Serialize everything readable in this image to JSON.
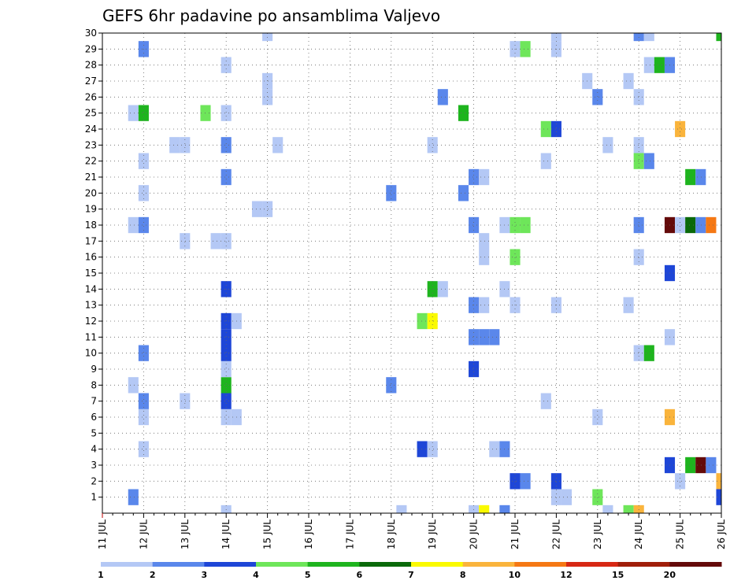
{
  "chart_data": {
    "type": "heatmap",
    "title": "GEFS 6hr padavine po ansamblima Valjevo",
    "x_tick_labels": [
      "11 JUL",
      "12 JUL",
      "13 JUL",
      "14 JUL",
      "15 JUL",
      "16 JUL",
      "17 JUL",
      "18 JUL",
      "19 JUL",
      "20 JUL",
      "21 JUL",
      "22 JUL",
      "23 JUL",
      "24 JUL",
      "25 JUL",
      "26 JUL"
    ],
    "y_tick_labels": [
      "1",
      "2",
      "3",
      "4",
      "5",
      "6",
      "7",
      "8",
      "9",
      "10",
      "11",
      "12",
      "13",
      "14",
      "15",
      "16",
      "17",
      "18",
      "19",
      "20",
      "21",
      "22",
      "23",
      "24",
      "25",
      "26",
      "27",
      "28",
      "29",
      "30"
    ],
    "xlim": [
      11.0,
      26.0
    ],
    "ylim": [
      0,
      30
    ],
    "time_step_hours": 6,
    "grid": "dotted",
    "colorbar": {
      "labels": [
        "1",
        "2",
        "3",
        "4",
        "5",
        "6",
        "7",
        "8",
        "10",
        "12",
        "15",
        "20"
      ],
      "colors": [
        "#b4c8f5",
        "#5a87eb",
        "#1e46d7",
        "#6ee65a",
        "#1eb41e",
        "#0a690a",
        "#fafa00",
        "#fab43c",
        "#f57814",
        "#d72814",
        "#a01e0a",
        "#640a0a"
      ]
    },
    "cells": [
      {
        "t": 11.75,
        "m": 1,
        "c": 1
      },
      {
        "t": 11.75,
        "m": 8,
        "c": 0
      },
      {
        "t": 11.75,
        "m": 18,
        "c": 0
      },
      {
        "t": 11.75,
        "m": 25,
        "c": 0
      },
      {
        "t": 12.0,
        "m": 4,
        "c": 0
      },
      {
        "t": 12.0,
        "m": 6,
        "c": 0
      },
      {
        "t": 12.0,
        "m": 7,
        "c": 1
      },
      {
        "t": 12.0,
        "m": 10,
        "c": 1
      },
      {
        "t": 12.0,
        "m": 18,
        "c": 1
      },
      {
        "t": 12.0,
        "m": 20,
        "c": 0
      },
      {
        "t": 12.0,
        "m": 22,
        "c": 0
      },
      {
        "t": 12.0,
        "m": 25,
        "c": 4
      },
      {
        "t": 12.0,
        "m": 29,
        "c": 1
      },
      {
        "t": 12.75,
        "m": 23,
        "c": 0
      },
      {
        "t": 13.0,
        "m": 23,
        "c": 0
      },
      {
        "t": 13.0,
        "m": 17,
        "c": 0
      },
      {
        "t": 13.0,
        "m": 7,
        "c": 0
      },
      {
        "t": 13.5,
        "m": 25,
        "c": 3
      },
      {
        "t": 13.75,
        "m": 17,
        "c": 0
      },
      {
        "t": 14.0,
        "m": 0,
        "c": 0
      },
      {
        "t": 14.0,
        "m": 6,
        "c": 0
      },
      {
        "t": 14.0,
        "m": 7,
        "c": 2
      },
      {
        "t": 14.0,
        "m": 8,
        "c": 4
      },
      {
        "t": 14.0,
        "m": 9,
        "c": 0
      },
      {
        "t": 14.0,
        "m": 10,
        "c": 2
      },
      {
        "t": 14.0,
        "m": 11,
        "c": 2
      },
      {
        "t": 14.0,
        "m": 12,
        "c": 2
      },
      {
        "t": 14.0,
        "m": 14,
        "c": 2
      },
      {
        "t": 14.0,
        "m": 17,
        "c": 0
      },
      {
        "t": 14.0,
        "m": 21,
        "c": 1
      },
      {
        "t": 14.0,
        "m": 23,
        "c": 1
      },
      {
        "t": 14.0,
        "m": 25,
        "c": 0
      },
      {
        "t": 14.0,
        "m": 28,
        "c": 0
      },
      {
        "t": 14.25,
        "m": 6,
        "c": 0
      },
      {
        "t": 14.25,
        "m": 12,
        "c": 0
      },
      {
        "t": 14.75,
        "m": 19,
        "c": 0
      },
      {
        "t": 15.0,
        "m": 19,
        "c": 0
      },
      {
        "t": 15.0,
        "m": 26,
        "c": 0
      },
      {
        "t": 15.0,
        "m": 27,
        "c": 0
      },
      {
        "t": 15.0,
        "m": 30,
        "c": 0
      },
      {
        "t": 15.25,
        "m": 23,
        "c": 0
      },
      {
        "t": 18.0,
        "m": 8,
        "c": 1
      },
      {
        "t": 18.0,
        "m": 20,
        "c": 1
      },
      {
        "t": 18.25,
        "m": 0,
        "c": 0
      },
      {
        "t": 18.75,
        "m": 4,
        "c": 2
      },
      {
        "t": 18.75,
        "m": 12,
        "c": 3
      },
      {
        "t": 19.0,
        "m": 4,
        "c": 0
      },
      {
        "t": 19.0,
        "m": 12,
        "c": 6
      },
      {
        "t": 19.0,
        "m": 14,
        "c": 4
      },
      {
        "t": 19.0,
        "m": 23,
        "c": 0
      },
      {
        "t": 19.25,
        "m": 14,
        "c": 0
      },
      {
        "t": 19.25,
        "m": 26,
        "c": 1
      },
      {
        "t": 19.75,
        "m": 20,
        "c": 1
      },
      {
        "t": 19.75,
        "m": 25,
        "c": 4
      },
      {
        "t": 20.0,
        "m": 0,
        "c": 0
      },
      {
        "t": 20.0,
        "m": 9,
        "c": 2
      },
      {
        "t": 20.0,
        "m": 11,
        "c": 1
      },
      {
        "t": 20.0,
        "m": 13,
        "c": 1
      },
      {
        "t": 20.0,
        "m": 18,
        "c": 1
      },
      {
        "t": 20.0,
        "m": 21,
        "c": 1
      },
      {
        "t": 20.25,
        "m": 0,
        "c": 6
      },
      {
        "t": 20.25,
        "m": 11,
        "c": 1
      },
      {
        "t": 20.25,
        "m": 13,
        "c": 0
      },
      {
        "t": 20.25,
        "m": 17,
        "c": 0
      },
      {
        "t": 20.25,
        "m": 16,
        "c": 0
      },
      {
        "t": 20.25,
        "m": 21,
        "c": 0
      },
      {
        "t": 20.5,
        "m": 4,
        "c": 0
      },
      {
        "t": 20.5,
        "m": 11,
        "c": 1
      },
      {
        "t": 20.75,
        "m": 0,
        "c": 1
      },
      {
        "t": 20.75,
        "m": 4,
        "c": 1
      },
      {
        "t": 20.75,
        "m": 14,
        "c": 0
      },
      {
        "t": 20.75,
        "m": 18,
        "c": 0
      },
      {
        "t": 21.0,
        "m": 2,
        "c": 2
      },
      {
        "t": 21.0,
        "m": 13,
        "c": 0
      },
      {
        "t": 21.0,
        "m": 16,
        "c": 3
      },
      {
        "t": 21.0,
        "m": 18,
        "c": 3
      },
      {
        "t": 21.0,
        "m": 29,
        "c": 0
      },
      {
        "t": 21.25,
        "m": 2,
        "c": 1
      },
      {
        "t": 21.25,
        "m": 18,
        "c": 3
      },
      {
        "t": 21.25,
        "m": 29,
        "c": 3
      },
      {
        "t": 21.75,
        "m": 7,
        "c": 0
      },
      {
        "t": 21.75,
        "m": 22,
        "c": 0
      },
      {
        "t": 21.75,
        "m": 24,
        "c": 3
      },
      {
        "t": 22.0,
        "m": 1,
        "c": 0
      },
      {
        "t": 22.0,
        "m": 2,
        "c": 2
      },
      {
        "t": 22.0,
        "m": 13,
        "c": 0
      },
      {
        "t": 22.0,
        "m": 24,
        "c": 2
      },
      {
        "t": 22.0,
        "m": 29,
        "c": 0
      },
      {
        "t": 22.0,
        "m": 30,
        "c": 0
      },
      {
        "t": 22.25,
        "m": 1,
        "c": 0
      },
      {
        "t": 22.75,
        "m": 27,
        "c": 0
      },
      {
        "t": 23.0,
        "m": 1,
        "c": 3
      },
      {
        "t": 23.0,
        "m": 6,
        "c": 0
      },
      {
        "t": 23.0,
        "m": 26,
        "c": 1
      },
      {
        "t": 23.25,
        "m": 0,
        "c": 0
      },
      {
        "t": 23.25,
        "m": 23,
        "c": 0
      },
      {
        "t": 23.75,
        "m": 0,
        "c": 3
      },
      {
        "t": 23.75,
        "m": 13,
        "c": 0
      },
      {
        "t": 23.75,
        "m": 27,
        "c": 0
      },
      {
        "t": 24.0,
        "m": 0,
        "c": 7
      },
      {
        "t": 24.0,
        "m": 10,
        "c": 0
      },
      {
        "t": 24.0,
        "m": 16,
        "c": 0
      },
      {
        "t": 24.0,
        "m": 18,
        "c": 1
      },
      {
        "t": 24.0,
        "m": 22,
        "c": 3
      },
      {
        "t": 24.0,
        "m": 23,
        "c": 0
      },
      {
        "t": 24.0,
        "m": 26,
        "c": 0
      },
      {
        "t": 24.0,
        "m": 30,
        "c": 1
      },
      {
        "t": 24.25,
        "m": 10,
        "c": 4
      },
      {
        "t": 24.25,
        "m": 22,
        "c": 1
      },
      {
        "t": 24.25,
        "m": 28,
        "c": 0
      },
      {
        "t": 24.25,
        "m": 30,
        "c": 0
      },
      {
        "t": 24.5,
        "m": 28,
        "c": 4
      },
      {
        "t": 24.75,
        "m": 3,
        "c": 2
      },
      {
        "t": 24.75,
        "m": 6,
        "c": 7
      },
      {
        "t": 24.75,
        "m": 11,
        "c": 0
      },
      {
        "t": 24.75,
        "m": 15,
        "c": 2
      },
      {
        "t": 24.75,
        "m": 18,
        "c": 11
      },
      {
        "t": 24.75,
        "m": 28,
        "c": 1
      },
      {
        "t": 25.0,
        "m": 2,
        "c": 0
      },
      {
        "t": 25.0,
        "m": 18,
        "c": 0
      },
      {
        "t": 25.0,
        "m": 24,
        "c": 7
      },
      {
        "t": 25.25,
        "m": 3,
        "c": 4
      },
      {
        "t": 25.25,
        "m": 18,
        "c": 5
      },
      {
        "t": 25.25,
        "m": 21,
        "c": 4
      },
      {
        "t": 25.5,
        "m": 3,
        "c": 11
      },
      {
        "t": 25.5,
        "m": 18,
        "c": 1
      },
      {
        "t": 25.5,
        "m": 21,
        "c": 1
      },
      {
        "t": 25.75,
        "m": 3,
        "c": 1
      },
      {
        "t": 25.75,
        "m": 18,
        "c": 8
      },
      {
        "t": 26.0,
        "m": 1,
        "c": 2
      },
      {
        "t": 26.0,
        "m": 2,
        "c": 7
      },
      {
        "t": 26.0,
        "m": 30,
        "c": 4
      }
    ]
  }
}
